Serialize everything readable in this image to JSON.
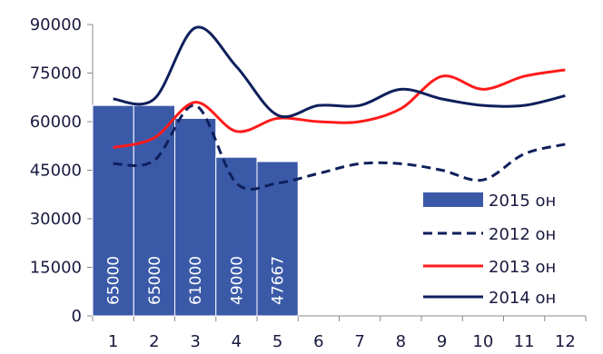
{
  "chart_data": {
    "type": "bar+line",
    "categories": [
      "1",
      "2",
      "3",
      "4",
      "5",
      "6",
      "7",
      "8",
      "9",
      "10",
      "11",
      "12"
    ],
    "ylim": [
      0,
      90000
    ],
    "yticks": [
      0,
      15000,
      30000,
      45000,
      60000,
      75000,
      90000
    ],
    "ytick_labels": [
      "0",
      "15000",
      "30000",
      "45000",
      "60000",
      "75000",
      "90000"
    ],
    "grid": false,
    "legend_position": "bottom-right",
    "series": [
      {
        "name": "2015 он",
        "kind": "bar",
        "color": "#3a5aa8",
        "x": [
          1,
          2,
          3,
          4,
          5
        ],
        "values": [
          65000,
          65000,
          61000,
          49000,
          47667
        ],
        "value_labels": [
          "65000",
          "65000",
          "61000",
          "49000",
          "47667"
        ]
      },
      {
        "name": "2012 он",
        "kind": "line",
        "style": "dashed",
        "color": "#0e1f5b",
        "x": [
          1,
          2,
          3,
          4,
          5,
          6,
          7,
          8,
          9,
          10,
          11,
          12
        ],
        "values": [
          47000,
          48000,
          65000,
          41000,
          41000,
          44000,
          47000,
          47000,
          45000,
          42000,
          50000,
          53000
        ]
      },
      {
        "name": "2013 он",
        "kind": "line",
        "style": "solid",
        "color": "#ff1a1a",
        "x": [
          1,
          2,
          3,
          4,
          5,
          6,
          7,
          8,
          9,
          10,
          11,
          12
        ],
        "values": [
          52000,
          55000,
          66000,
          57000,
          61000,
          60000,
          60000,
          64000,
          74000,
          70000,
          74000,
          76000
        ]
      },
      {
        "name": "2014 он",
        "kind": "line",
        "style": "solid",
        "color": "#0e1f5b",
        "x": [
          1,
          2,
          3,
          4,
          5,
          6,
          7,
          8,
          9,
          10,
          11,
          12
        ],
        "values": [
          67000,
          67000,
          89000,
          77000,
          62000,
          65000,
          65000,
          70000,
          67000,
          65000,
          65000,
          68000
        ]
      }
    ]
  }
}
